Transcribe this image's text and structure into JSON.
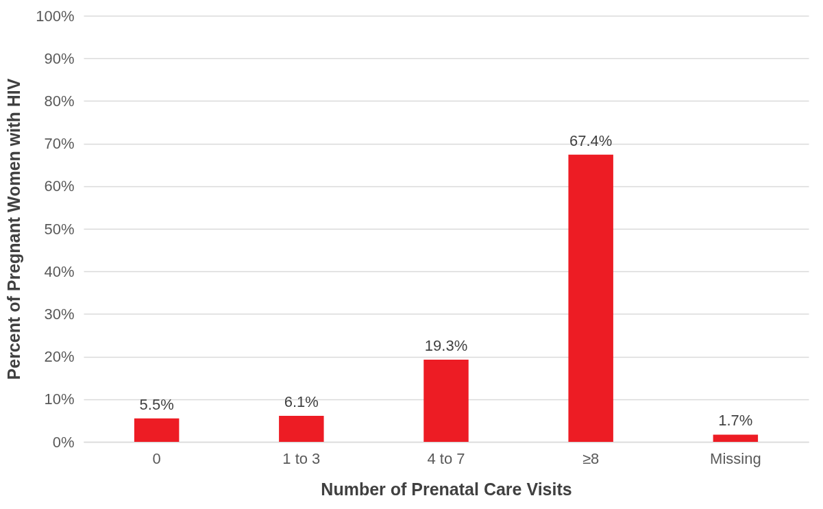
{
  "chart_data": {
    "type": "bar",
    "xlabel": "Number of Prenatal Care Visits",
    "ylabel": "Percent of Pregnant Women with HIV",
    "categories": [
      "0",
      "1 to 3",
      "4 to 7",
      "≥8",
      "Missing"
    ],
    "values": [
      5.5,
      6.1,
      19.3,
      67.4,
      1.7
    ],
    "value_labels": [
      "5.5%",
      "6.1%",
      "19.3%",
      "67.4%",
      "1.7%"
    ],
    "color": "#ed1c24",
    "ylim": [
      0,
      100
    ],
    "yticks": [
      {
        "value": 0,
        "label": "0%"
      },
      {
        "value": 10,
        "label": "10%"
      },
      {
        "value": 20,
        "label": "20%"
      },
      {
        "value": 30,
        "label": "30%"
      },
      {
        "value": 40,
        "label": "40%"
      },
      {
        "value": 50,
        "label": "50%"
      },
      {
        "value": 60,
        "label": "60%"
      },
      {
        "value": 70,
        "label": "70%"
      },
      {
        "value": 80,
        "label": "80%"
      },
      {
        "value": 90,
        "label": "90%"
      },
      {
        "value": 100,
        "label": "100%"
      }
    ],
    "grid": "y"
  }
}
